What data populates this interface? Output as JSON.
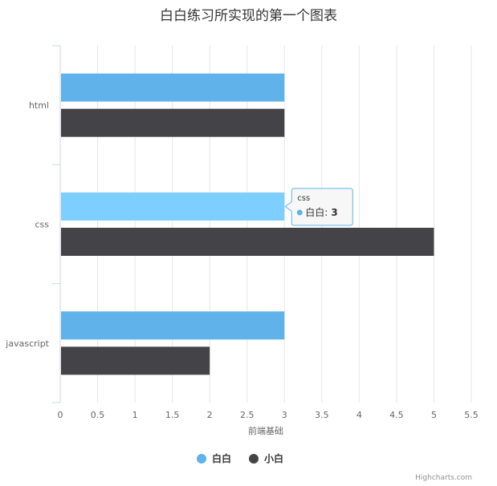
{
  "chart_data": {
    "type": "bar",
    "orientation": "horizontal",
    "title": "白白练习所实现的第一个图表",
    "xlabel": "前端基础",
    "ylabel": "",
    "categories": [
      "html",
      "css",
      "javascript"
    ],
    "series": [
      {
        "name": "白白",
        "values": [
          3,
          3,
          3
        ],
        "color": "#5fb3ea"
      },
      {
        "name": "小白",
        "values": [
          3,
          5,
          2
        ],
        "color": "#434348"
      }
    ],
    "xlim": [
      0,
      5.5
    ],
    "ticks": [
      "0",
      "0.5",
      "1",
      "1.5",
      "2",
      "2.5",
      "3",
      "3.5",
      "4",
      "4.5",
      "5",
      "5.5"
    ],
    "grid": true,
    "legend_position": "bottom-center",
    "hover_color": "#7dcfff",
    "tooltip": {
      "category": "css",
      "series_name": "白白",
      "separator": ":",
      "value": "3"
    },
    "credits": "Highcharts.com"
  }
}
